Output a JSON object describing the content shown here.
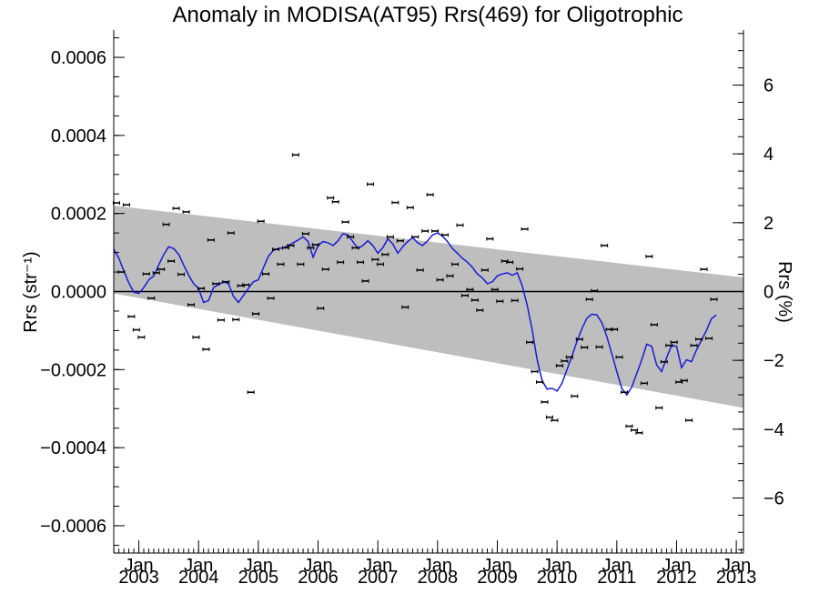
{
  "chart_data": {
    "type": "scatter",
    "title": "Anomaly in MODISA(AT95) Rrs(469) for Oligotrophic",
    "ylabel_left": "Rrs (str⁻¹)",
    "ylabel_right": "Rrs (%)",
    "xlim": [
      2002.58,
      2013.12
    ],
    "ylim": [
      -0.00067,
      0.00067
    ],
    "y2lim": [
      -7.6,
      7.6
    ],
    "x_ticks": [
      {
        "month": "Jan",
        "year": "2003",
        "x": 2003.0
      },
      {
        "month": "Jan",
        "year": "2004",
        "x": 2004.0
      },
      {
        "month": "Jan",
        "year": "2005",
        "x": 2005.0
      },
      {
        "month": "Jan",
        "year": "2006",
        "x": 2006.0
      },
      {
        "month": "Jan",
        "year": "2007",
        "x": 2007.0
      },
      {
        "month": "Jan",
        "year": "2008",
        "x": 2008.0
      },
      {
        "month": "Jan",
        "year": "2009",
        "x": 2009.0
      },
      {
        "month": "Jan",
        "year": "2010",
        "x": 2010.0
      },
      {
        "month": "Jan",
        "year": "2011",
        "x": 2011.0
      },
      {
        "month": "Jan",
        "year": "2012",
        "x": 2012.0
      },
      {
        "month": "Jan",
        "year": "2013",
        "x": 2013.0
      }
    ],
    "y_ticks": [
      {
        "label": "0.0006",
        "v": 0.0006
      },
      {
        "label": "0.0004",
        "v": 0.0004
      },
      {
        "label": "0.0002",
        "v": 0.0002
      },
      {
        "label": "0.0000",
        "v": 0.0
      },
      {
        "label": "−0.0002",
        "v": -0.0002
      },
      {
        "label": "−0.0004",
        "v": -0.0004
      },
      {
        "label": "−0.0006",
        "v": -0.0006
      }
    ],
    "y2_ticks": [
      {
        "label": "6",
        "v": 6
      },
      {
        "label": "4",
        "v": 4
      },
      {
        "label": "2",
        "v": 2
      },
      {
        "label": "0",
        "v": 0
      },
      {
        "label": "−2",
        "v": -2
      },
      {
        "label": "−4",
        "v": -4
      },
      {
        "label": "−6",
        "v": -6
      }
    ],
    "y_minor_step": 5e-05,
    "y2_minor_step": 0.5,
    "x_minor_step": 0.0833333,
    "zero_line": true,
    "shaded_band": {
      "color": "#bebebe",
      "x": [
        2002.58,
        2013.12
      ],
      "upper": [
        0.00022,
        3.6e-05
      ],
      "lower": [
        -5e-06,
        -0.000298
      ]
    },
    "series": [
      {
        "kind": "points",
        "color": "#000000",
        "points": [
          [
            2002.625,
            0.000227
          ],
          [
            2002.708,
            5e-05
          ],
          [
            2002.792,
            0.000222
          ],
          [
            2002.875,
            -6.4e-05
          ],
          [
            2002.958,
            -9.8e-05
          ],
          [
            2003.042,
            -0.000117
          ],
          [
            2003.125,
            4.5e-05
          ],
          [
            2003.208,
            -1.7e-05
          ],
          [
            2003.292,
            4.8e-05
          ],
          [
            2003.375,
            5.7e-05
          ],
          [
            2003.458,
            0.000172
          ],
          [
            2003.542,
            7.8e-05
          ],
          [
            2003.625,
            0.000213
          ],
          [
            2003.708,
            4.4e-05
          ],
          [
            2003.792,
            0.000204
          ],
          [
            2003.875,
            -3.4e-05
          ],
          [
            2003.958,
            -0.000117
          ],
          [
            2004.042,
            8e-06
          ],
          [
            2004.125,
            -0.000148
          ],
          [
            2004.208,
            0.000132
          ],
          [
            2004.292,
            2e-05
          ],
          [
            2004.375,
            -7.3e-05
          ],
          [
            2004.458,
            2.5e-05
          ],
          [
            2004.542,
            0.00015
          ],
          [
            2004.625,
            -7.2e-05
          ],
          [
            2004.708,
            1.5e-05
          ],
          [
            2004.792,
            1.7e-05
          ],
          [
            2004.875,
            -0.000258
          ],
          [
            2004.958,
            -5.7e-05
          ],
          [
            2005.042,
            0.00018
          ],
          [
            2005.125,
            4.5e-05
          ],
          [
            2005.208,
            -1.7e-05
          ],
          [
            2005.292,
            0.000108
          ],
          [
            2005.375,
            7e-05
          ],
          [
            2005.458,
            0.000112
          ],
          [
            2005.542,
            0.000118
          ],
          [
            2005.625,
            0.00035
          ],
          [
            2005.708,
            7e-05
          ],
          [
            2005.792,
            0.000148
          ],
          [
            2005.875,
            0.000112
          ],
          [
            2005.958,
            0.00012
          ],
          [
            2006.042,
            -4.3e-05
          ],
          [
            2006.125,
            5.7e-05
          ],
          [
            2006.208,
            0.00024
          ],
          [
            2006.292,
            0.00023
          ],
          [
            2006.375,
            7.5e-05
          ],
          [
            2006.458,
            0.000178
          ],
          [
            2006.542,
            0.00014
          ],
          [
            2006.625,
            0.000112
          ],
          [
            2006.708,
            7.5e-05
          ],
          [
            2006.792,
            2.7e-05
          ],
          [
            2006.875,
            0.000275
          ],
          [
            2006.958,
            8.2e-05
          ],
          [
            2007.042,
            7e-05
          ],
          [
            2007.125,
            9.5e-05
          ],
          [
            2007.208,
            0.00014
          ],
          [
            2007.292,
            0.000228
          ],
          [
            2007.375,
            0.00013
          ],
          [
            2007.458,
            -4e-05
          ],
          [
            2007.542,
            0.000215
          ],
          [
            2007.625,
            0.00014
          ],
          [
            2007.708,
            5.5e-05
          ],
          [
            2007.792,
            0.000155
          ],
          [
            2007.875,
            0.000248
          ],
          [
            2007.958,
            0.000155
          ],
          [
            2008.042,
            3e-05
          ],
          [
            2008.125,
            0.000145
          ],
          [
            2008.208,
            4e-05
          ],
          [
            2008.292,
            7e-05
          ],
          [
            2008.375,
            0.00017
          ],
          [
            2008.458,
            -1e-05
          ],
          [
            2008.542,
            5e-06
          ],
          [
            2008.625,
            -2.2e-05
          ],
          [
            2008.708,
            -4.8e-05
          ],
          [
            2008.792,
            5.5e-05
          ],
          [
            2008.875,
            0.000135
          ],
          [
            2008.958,
            5e-06
          ],
          [
            2009.042,
            -2.5e-05
          ],
          [
            2009.125,
            7.8e-05
          ],
          [
            2009.208,
            7.5e-05
          ],
          [
            2009.292,
            -2.3e-05
          ],
          [
            2009.375,
            5.8e-05
          ],
          [
            2009.458,
            0.00016
          ],
          [
            2009.542,
            -0.00013
          ],
          [
            2009.625,
            -0.000205
          ],
          [
            2009.708,
            -0.000232
          ],
          [
            2009.792,
            -0.000283
          ],
          [
            2009.875,
            -0.000322
          ],
          [
            2009.958,
            -0.00033
          ],
          [
            2010.042,
            -0.00019
          ],
          [
            2010.125,
            -0.000178
          ],
          [
            2010.208,
            -0.000168
          ],
          [
            2010.292,
            -0.000268
          ],
          [
            2010.375,
            -0.000122
          ],
          [
            2010.458,
            -0.000143
          ],
          [
            2010.542,
            -2e-05
          ],
          [
            2010.625,
            2e-06
          ],
          [
            2010.708,
            -0.000142
          ],
          [
            2010.792,
            0.000118
          ],
          [
            2010.875,
            -9.7e-05
          ],
          [
            2010.958,
            -9.7e-05
          ],
          [
            2011.042,
            -0.000168
          ],
          [
            2011.125,
            -0.000258
          ],
          [
            2011.208,
            -0.000345
          ],
          [
            2011.292,
            -0.000355
          ],
          [
            2011.375,
            -0.000362
          ],
          [
            2011.458,
            -0.000235
          ],
          [
            2011.542,
            9e-05
          ],
          [
            2011.625,
            -8.5e-05
          ],
          [
            2011.708,
            -0.000298
          ],
          [
            2011.792,
            -0.00018
          ],
          [
            2011.875,
            -0.000138
          ],
          [
            2011.958,
            -0.00013
          ],
          [
            2012.042,
            -0.000232
          ],
          [
            2012.125,
            -0.000228
          ],
          [
            2012.208,
            -0.00033
          ],
          [
            2012.292,
            -0.000138
          ],
          [
            2012.375,
            -0.000122
          ],
          [
            2012.458,
            5.7e-05
          ],
          [
            2012.542,
            -0.00012
          ],
          [
            2012.625,
            -2e-05
          ]
        ]
      },
      {
        "kind": "line",
        "color": "#1a1ad8",
        "points": [
          [
            2002.583,
            0.000108
          ],
          [
            2002.667,
            8.5e-05
          ],
          [
            2002.75,
            5.2e-05
          ],
          [
            2002.833,
            2.2e-05
          ],
          [
            2002.917,
            -2e-06
          ],
          [
            2003.0,
            -5e-06
          ],
          [
            2003.083,
            1e-05
          ],
          [
            2003.167,
            3e-05
          ],
          [
            2003.25,
            4e-05
          ],
          [
            2003.333,
            6.8e-05
          ],
          [
            2003.417,
            9.5e-05
          ],
          [
            2003.5,
            0.000115
          ],
          [
            2003.583,
            0.00011
          ],
          [
            2003.667,
            9.5e-05
          ],
          [
            2003.75,
            6.8e-05
          ],
          [
            2003.833,
            4.2e-05
          ],
          [
            2003.917,
            2e-05
          ],
          [
            2004.0,
            8e-06
          ],
          [
            2004.083,
            -2.8e-05
          ],
          [
            2004.167,
            -2.3e-05
          ],
          [
            2004.25,
            1e-05
          ],
          [
            2004.333,
            1.8e-05
          ],
          [
            2004.417,
            2.5e-05
          ],
          [
            2004.5,
            2e-05
          ],
          [
            2004.583,
            -1.2e-05
          ],
          [
            2004.667,
            -2.8e-05
          ],
          [
            2004.75,
            -1e-05
          ],
          [
            2004.833,
            8e-06
          ],
          [
            2004.917,
            2.5e-05
          ],
          [
            2005.0,
            3e-05
          ],
          [
            2005.083,
            6e-05
          ],
          [
            2005.167,
            9e-05
          ],
          [
            2005.25,
            0.000105
          ],
          [
            2005.333,
            0.00011
          ],
          [
            2005.417,
            0.000112
          ],
          [
            2005.5,
            0.000118
          ],
          [
            2005.583,
            0.000125
          ],
          [
            2005.667,
            0.000132
          ],
          [
            2005.75,
            0.00014
          ],
          [
            2005.833,
            0.000128
          ],
          [
            2005.917,
            8.8e-05
          ],
          [
            2006.0,
            0.000118
          ],
          [
            2006.083,
            0.000128
          ],
          [
            2006.167,
            0.000125
          ],
          [
            2006.25,
            0.000118
          ],
          [
            2006.333,
            0.00013
          ],
          [
            2006.417,
            0.000148
          ],
          [
            2006.5,
            0.000145
          ],
          [
            2006.583,
            0.000128
          ],
          [
            2006.667,
            0.00011
          ],
          [
            2006.75,
            0.000118
          ],
          [
            2006.833,
            0.00013
          ],
          [
            2006.917,
            0.000118
          ],
          [
            2007.0,
            9.8e-05
          ],
          [
            2007.083,
            0.000112
          ],
          [
            2007.167,
            0.000135
          ],
          [
            2007.25,
            0.000122
          ],
          [
            2007.333,
            9.8e-05
          ],
          [
            2007.417,
            0.000115
          ],
          [
            2007.5,
            0.000128
          ],
          [
            2007.583,
            0.000138
          ],
          [
            2007.667,
            0.000125
          ],
          [
            2007.75,
            0.000118
          ],
          [
            2007.833,
            0.00013
          ],
          [
            2007.917,
            0.000145
          ],
          [
            2008.0,
            0.00015
          ],
          [
            2008.083,
            0.000142
          ],
          [
            2008.167,
            0.000128
          ],
          [
            2008.25,
            0.00011
          ],
          [
            2008.333,
            9.8e-05
          ],
          [
            2008.417,
            8.5e-05
          ],
          [
            2008.5,
            7.5e-05
          ],
          [
            2008.583,
            6.2e-05
          ],
          [
            2008.667,
            4.5e-05
          ],
          [
            2008.75,
            3.5e-05
          ],
          [
            2008.833,
            2e-05
          ],
          [
            2008.917,
            2.5e-05
          ],
          [
            2009.0,
            4e-05
          ],
          [
            2009.083,
            4.5e-05
          ],
          [
            2009.167,
            4.8e-05
          ],
          [
            2009.25,
            4.2e-05
          ],
          [
            2009.333,
            4.8e-05
          ],
          [
            2009.417,
            1.5e-05
          ],
          [
            2009.5,
            -3.5e-05
          ],
          [
            2009.583,
            -9.8e-05
          ],
          [
            2009.667,
            -0.000175
          ],
          [
            2009.75,
            -0.000228
          ],
          [
            2009.833,
            -0.00025
          ],
          [
            2009.917,
            -0.000248
          ],
          [
            2010.0,
            -0.000255
          ],
          [
            2010.083,
            -0.000235
          ],
          [
            2010.167,
            -0.0002
          ],
          [
            2010.25,
            -0.000165
          ],
          [
            2010.333,
            -0.000128
          ],
          [
            2010.417,
            -9.5e-05
          ],
          [
            2010.5,
            -6.8e-05
          ],
          [
            2010.583,
            -5.8e-05
          ],
          [
            2010.667,
            -6e-05
          ],
          [
            2010.75,
            -8e-05
          ],
          [
            2010.833,
            -0.000115
          ],
          [
            2010.917,
            -0.00016
          ],
          [
            2011.0,
            -0.000205
          ],
          [
            2011.083,
            -0.000248
          ],
          [
            2011.167,
            -0.000265
          ],
          [
            2011.25,
            -0.000245
          ],
          [
            2011.333,
            -0.00021
          ],
          [
            2011.417,
            -0.000175
          ],
          [
            2011.5,
            -0.000135
          ],
          [
            2011.583,
            -0.00014
          ],
          [
            2011.667,
            -0.000188
          ],
          [
            2011.75,
            -0.000205
          ],
          [
            2011.833,
            -0.00017
          ],
          [
            2011.917,
            -0.000138
          ],
          [
            2012.0,
            -0.00014
          ],
          [
            2012.083,
            -0.000195
          ],
          [
            2012.167,
            -0.000175
          ],
          [
            2012.25,
            -0.00018
          ],
          [
            2012.333,
            -0.00015
          ],
          [
            2012.417,
            -0.000125
          ],
          [
            2012.5,
            -0.0001
          ],
          [
            2012.583,
            -7e-05
          ],
          [
            2012.667,
            -6e-05
          ]
        ]
      }
    ]
  }
}
